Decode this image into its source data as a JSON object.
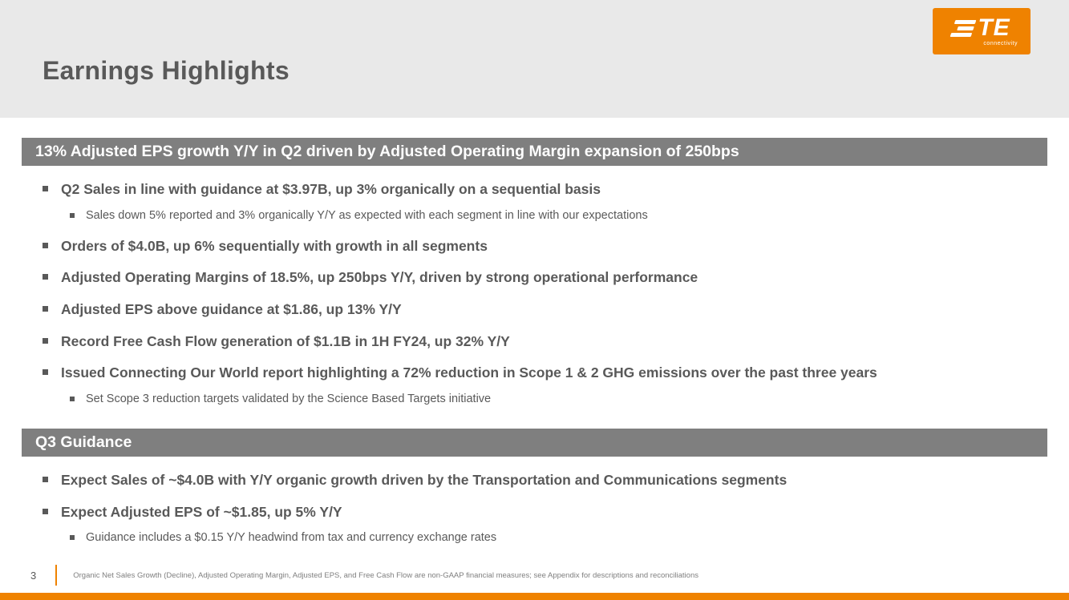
{
  "slide": {
    "title": "Earnings Highlights",
    "logo": {
      "text": "TE",
      "subtext": "connectivity"
    },
    "sections": [
      {
        "banner": "13% Adjusted EPS growth Y/Y in Q2 driven by Adjusted Operating Margin expansion of 250bps",
        "bullets": [
          {
            "level": 1,
            "text": "Q2 Sales in line with guidance at $3.97B, up 3% organically on a sequential basis"
          },
          {
            "level": 2,
            "text": "Sales down 5% reported and 3% organically Y/Y as expected with each segment in line with our expectations"
          },
          {
            "level": 1,
            "text": "Orders of $4.0B, up 6% sequentially with growth in all segments"
          },
          {
            "level": 1,
            "text": "Adjusted Operating Margins of 18.5%, up 250bps Y/Y, driven by strong operational performance"
          },
          {
            "level": 1,
            "text": "Adjusted EPS above guidance at $1.86, up 13% Y/Y"
          },
          {
            "level": 1,
            "text": "Record Free Cash Flow generation of $1.1B in 1H FY24, up 32% Y/Y"
          },
          {
            "level": 1,
            "text": "Issued Connecting Our World report highlighting a 72% reduction in Scope 1 & 2 GHG emissions over the past three years"
          },
          {
            "level": 2,
            "text": "Set Scope 3 reduction targets validated by the Science Based Targets initiative"
          }
        ]
      },
      {
        "banner": "Q3 Guidance",
        "bullets": [
          {
            "level": 1,
            "text": "Expect Sales of ~$4.0B with Y/Y organic growth driven by the Transportation and Communications segments"
          },
          {
            "level": 1,
            "text": "Expect Adjusted EPS of ~$1.85, up 5% Y/Y"
          },
          {
            "level": 2,
            "text": "Guidance includes a $0.15 Y/Y headwind from tax and currency exchange rates"
          }
        ]
      }
    ],
    "footer": {
      "page_number": "3",
      "footnote": "Organic Net Sales Growth (Decline), Adjusted Operating Margin, Adjusted EPS, and Free Cash Flow are non-GAAP financial measures; see Appendix for descriptions and reconciliations"
    },
    "colors": {
      "accent_orange": "#EF8200",
      "banner_gray": "#7F7F7F",
      "header_gray": "#E9E9E9",
      "text_gray": "#595959"
    }
  }
}
